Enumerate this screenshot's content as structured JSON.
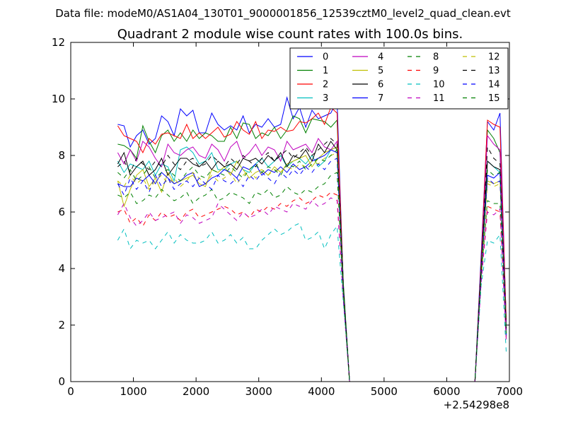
{
  "suptitle": "Data file: modeM0/AS1A04_130T01_9000001856_12539cztM0_level2_quad_clean.evt",
  "chart_data": {
    "type": "line",
    "title": "Quadrant 2 module wise count rates with 100.0s bins.",
    "xlabel": "",
    "ylabel": "",
    "x_offset_label": "+2.54298e8",
    "xlim": [
      0,
      7000
    ],
    "ylim": [
      0,
      12
    ],
    "xticks": [
      "0",
      "1000",
      "2000",
      "3000",
      "4000",
      "5000",
      "6000",
      "7000"
    ],
    "yticks": [
      "0",
      "2",
      "4",
      "6",
      "8",
      "10",
      "12"
    ],
    "grid": false,
    "legend_position": "top-right",
    "legend_columns": 4,
    "x": [
      750,
      850,
      950,
      1050,
      1150,
      1250,
      1350,
      1450,
      1550,
      1650,
      1750,
      1850,
      1950,
      2050,
      2150,
      2250,
      2350,
      2450,
      2550,
      2650,
      2750,
      2850,
      2950,
      3050,
      3150,
      3250,
      3350,
      3450,
      3550,
      3650,
      3750,
      3850,
      3950,
      4050,
      4150,
      4250,
      4350,
      4450,
      6450,
      6550,
      6650,
      6750,
      6850,
      6950
    ],
    "series": [
      {
        "name": "0",
        "color": "#0000ff",
        "dash": "solid",
        "values": [
          9.1,
          9.05,
          8.3,
          8.7,
          8.9,
          8.4,
          8.6,
          9.4,
          9.2,
          8.7,
          9.65,
          9.4,
          9.6,
          8.8,
          8.8,
          9.5,
          9.1,
          8.9,
          9.05,
          8.9,
          9.4,
          8.8,
          9.1,
          9.0,
          9.3,
          9.0,
          9.1,
          10.05,
          9.3,
          9.7,
          9.0,
          9.6,
          9.3,
          9.4,
          9.5,
          9.95,
          3.4,
          0.0,
          0.0,
          4.5,
          9.2,
          8.9,
          9.5,
          2.0
        ]
      },
      {
        "name": "1",
        "color": "#008000",
        "dash": "solid",
        "values": [
          8.4,
          8.35,
          8.2,
          7.9,
          9.05,
          8.5,
          8.1,
          8.7,
          8.9,
          8.5,
          8.8,
          8.5,
          8.9,
          8.6,
          8.8,
          8.7,
          8.5,
          8.5,
          9.0,
          8.6,
          9.15,
          9.1,
          8.6,
          8.8,
          8.7,
          9.0,
          8.6,
          8.9,
          9.4,
          9.3,
          8.8,
          9.3,
          9.25,
          9.2,
          9.0,
          9.25,
          3.5,
          0.0,
          0.0,
          4.2,
          8.9,
          8.6,
          8.1,
          2.2
        ]
      },
      {
        "name": "2",
        "color": "#ff0000",
        "dash": "solid",
        "values": [
          9.05,
          8.7,
          8.6,
          8.5,
          8.1,
          8.6,
          8.4,
          8.75,
          8.8,
          8.7,
          8.6,
          9.1,
          8.6,
          8.8,
          8.6,
          8.8,
          9.0,
          8.65,
          8.75,
          9.2,
          8.9,
          8.75,
          9.2,
          8.6,
          8.9,
          8.85,
          9.0,
          8.85,
          8.9,
          9.2,
          9.15,
          9.3,
          9.5,
          9.1,
          9.7,
          9.5,
          3.3,
          0.0,
          0.0,
          4.3,
          9.25,
          9.1,
          9.0,
          2.1
        ]
      },
      {
        "name": "3",
        "color": "#00bfbf",
        "dash": "solid",
        "values": [
          7.8,
          7.4,
          7.7,
          7.6,
          7.5,
          7.8,
          7.3,
          7.7,
          7.6,
          7.1,
          8.2,
          8.3,
          8.1,
          7.7,
          7.8,
          8.1,
          7.5,
          7.5,
          7.7,
          7.8,
          7.5,
          7.4,
          7.7,
          7.9,
          7.6,
          7.8,
          8.0,
          7.6,
          7.8,
          7.9,
          7.7,
          8.0,
          7.6,
          7.8,
          8.2,
          8.3,
          3.2,
          0.0,
          0.0,
          4.0,
          7.8,
          7.6,
          7.4,
          1.8
        ]
      },
      {
        "name": "4",
        "color": "#bf00bf",
        "dash": "solid",
        "values": [
          8.1,
          7.7,
          8.2,
          7.8,
          8.5,
          8.3,
          7.9,
          7.6,
          8.4,
          8.1,
          8.0,
          8.2,
          8.3,
          8.0,
          7.9,
          8.4,
          8.2,
          7.8,
          8.3,
          8.5,
          7.9,
          8.1,
          8.4,
          8.0,
          8.3,
          8.2,
          7.8,
          8.5,
          8.2,
          8.3,
          8.4,
          8.1,
          8.6,
          8.3,
          8.2,
          8.5,
          3.3,
          0.0,
          0.0,
          4.1,
          8.7,
          8.4,
          8.2,
          1.9
        ]
      },
      {
        "name": "5",
        "color": "#bfbf00",
        "dash": "solid",
        "values": [
          7.1,
          6.2,
          6.8,
          7.3,
          7.5,
          6.9,
          7.2,
          6.7,
          7.4,
          7.0,
          7.1,
          7.2,
          7.3,
          7.0,
          6.9,
          7.5,
          7.4,
          7.6,
          7.3,
          7.8,
          7.5,
          7.2,
          7.4,
          7.5,
          7.3,
          7.6,
          7.4,
          7.7,
          7.8,
          7.9,
          8.0,
          7.6,
          7.9,
          8.1,
          8.2,
          8.3,
          3.1,
          0.0,
          0.0,
          3.9,
          7.1,
          7.0,
          7.1,
          1.7
        ]
      },
      {
        "name": "6",
        "color": "#000000",
        "dash": "solid",
        "values": [
          7.7,
          8.1,
          7.3,
          7.6,
          7.8,
          7.3,
          7.5,
          7.9,
          7.3,
          7.6,
          7.9,
          7.9,
          7.7,
          7.6,
          7.8,
          7.5,
          7.8,
          7.6,
          7.7,
          7.5,
          7.9,
          7.8,
          7.9,
          7.7,
          8.0,
          7.8,
          8.1,
          7.6,
          8.0,
          7.9,
          8.2,
          7.8,
          8.4,
          8.1,
          8.5,
          8.2,
          3.3,
          0.0,
          0.0,
          4.0,
          7.8,
          7.6,
          7.5,
          1.8
        ]
      },
      {
        "name": "7",
        "color": "#0000ff",
        "dash": "solid",
        "values": [
          7.0,
          6.9,
          6.9,
          7.2,
          7.1,
          7.3,
          7.0,
          7.4,
          7.2,
          7.0,
          7.1,
          7.3,
          7.4,
          6.9,
          7.0,
          7.2,
          7.3,
          7.5,
          7.4,
          7.2,
          7.6,
          7.5,
          7.7,
          7.3,
          7.5,
          7.4,
          7.6,
          7.4,
          7.7,
          7.5,
          7.6,
          7.8,
          7.9,
          8.0,
          8.2,
          8.1,
          3.2,
          0.0,
          0.0,
          3.9,
          7.3,
          7.2,
          7.4,
          1.7
        ]
      },
      {
        "name": "8",
        "color": "#008000",
        "dash": "dashed",
        "values": [
          6.6,
          6.5,
          6.7,
          6.3,
          6.4,
          6.6,
          6.5,
          6.8,
          6.6,
          6.4,
          6.5,
          6.7,
          6.3,
          6.5,
          6.6,
          6.8,
          6.4,
          6.5,
          6.7,
          6.6,
          6.5,
          6.3,
          6.7,
          6.6,
          6.8,
          6.5,
          6.6,
          6.9,
          6.7,
          6.6,
          6.8,
          6.7,
          6.9,
          7.0,
          7.3,
          7.4,
          3.0,
          0.0,
          0.0,
          3.7,
          6.4,
          6.3,
          6.3,
          1.6
        ]
      },
      {
        "name": "9",
        "color": "#ff0000",
        "dash": "dashed",
        "values": [
          6.0,
          6.1,
          5.6,
          5.8,
          5.5,
          5.9,
          5.7,
          6.0,
          5.8,
          5.9,
          5.7,
          6.0,
          6.1,
          5.8,
          5.9,
          6.0,
          6.1,
          6.2,
          6.1,
          5.9,
          6.0,
          5.8,
          6.1,
          6.0,
          6.2,
          6.1,
          6.3,
          6.2,
          6.4,
          6.5,
          6.3,
          6.4,
          6.6,
          6.5,
          6.7,
          6.6,
          2.9,
          0.0,
          0.0,
          3.6,
          6.2,
          6.1,
          6.0,
          1.5
        ]
      },
      {
        "name": "10",
        "color": "#00bfbf",
        "dash": "dashed",
        "values": [
          5.0,
          5.4,
          4.7,
          5.0,
          4.9,
          5.0,
          4.7,
          5.0,
          5.3,
          4.9,
          5.2,
          5.0,
          4.9,
          4.9,
          5.0,
          5.3,
          4.9,
          5.0,
          5.2,
          4.9,
          5.1,
          4.7,
          4.7,
          5.0,
          5.2,
          5.4,
          5.2,
          5.3,
          5.5,
          5.6,
          5.0,
          5.1,
          5.3,
          4.7,
          5.2,
          5.5,
          2.8,
          0.0,
          0.0,
          3.4,
          5.0,
          4.9,
          5.2,
          1.0
        ]
      },
      {
        "name": "11",
        "color": "#bf00bf",
        "dash": "dashed",
        "values": [
          5.9,
          6.3,
          5.8,
          5.5,
          5.7,
          6.0,
          5.7,
          5.8,
          5.9,
          6.0,
          5.6,
          5.9,
          5.8,
          5.6,
          5.7,
          5.8,
          6.3,
          6.1,
          5.9,
          5.7,
          6.0,
          5.8,
          5.9,
          6.1,
          5.9,
          6.2,
          6.1,
          6.0,
          6.3,
          6.2,
          6.1,
          6.4,
          6.2,
          6.3,
          6.5,
          6.4,
          2.9,
          0.0,
          0.0,
          3.5,
          6.0,
          5.9,
          6.1,
          1.4
        ]
      },
      {
        "name": "12",
        "color": "#bfbf00",
        "dash": "dashed",
        "values": [
          7.1,
          6.9,
          7.3,
          7.0,
          7.2,
          6.8,
          7.1,
          7.3,
          7.0,
          7.2,
          6.9,
          7.1,
          7.4,
          7.2,
          7.0,
          7.3,
          7.1,
          7.2,
          7.4,
          7.0,
          7.3,
          7.5,
          7.2,
          7.4,
          7.3,
          7.5,
          7.4,
          7.6,
          7.5,
          7.7,
          7.6,
          7.8,
          7.7,
          7.9,
          8.0,
          8.1,
          3.1,
          0.0,
          0.0,
          3.8,
          7.0,
          6.9,
          7.0,
          1.6
        ]
      },
      {
        "name": "13",
        "color": "#000000",
        "dash": "dashed",
        "values": [
          7.6,
          7.8,
          7.4,
          7.9,
          7.7,
          7.5,
          7.8,
          7.6,
          8.0,
          7.7,
          7.5,
          7.8,
          7.9,
          7.6,
          7.7,
          8.0,
          7.8,
          7.6,
          7.9,
          7.7,
          8.0,
          7.8,
          7.6,
          7.9,
          8.1,
          7.8,
          8.0,
          8.2,
          7.9,
          8.1,
          8.3,
          8.0,
          8.2,
          8.4,
          8.6,
          8.4,
          3.3,
          0.0,
          0.0,
          4.0,
          8.3,
          7.9,
          7.7,
          1.8
        ]
      },
      {
        "name": "14",
        "color": "#0000ff",
        "dash": "dashed",
        "values": [
          7.0,
          6.6,
          7.2,
          6.8,
          7.1,
          6.7,
          7.3,
          6.9,
          7.2,
          6.8,
          7.0,
          7.1,
          6.9,
          7.2,
          7.0,
          6.8,
          7.3,
          7.1,
          7.0,
          7.2,
          6.9,
          7.3,
          7.1,
          7.4,
          7.2,
          7.0,
          7.4,
          7.2,
          7.5,
          7.3,
          7.6,
          7.4,
          7.7,
          7.5,
          7.8,
          7.9,
          3.1,
          0.0,
          0.0,
          3.8,
          7.2,
          7.0,
          7.1,
          1.6
        ]
      },
      {
        "name": "15",
        "color": "#008000",
        "dash": "dashed",
        "values": [
          7.4,
          7.2,
          7.5,
          7.1,
          7.3,
          7.6,
          7.2,
          7.4,
          7.5,
          7.3,
          7.1,
          7.4,
          7.6,
          7.3,
          7.2,
          7.5,
          7.4,
          7.3,
          7.6,
          7.4,
          7.2,
          7.5,
          7.7,
          7.4,
          7.6,
          7.5,
          7.3,
          7.7,
          7.6,
          7.8,
          7.5,
          7.7,
          7.9,
          7.8,
          8.0,
          8.2,
          3.2,
          0.0,
          0.0,
          3.9,
          7.5,
          7.3,
          7.4,
          1.7
        ]
      }
    ]
  }
}
